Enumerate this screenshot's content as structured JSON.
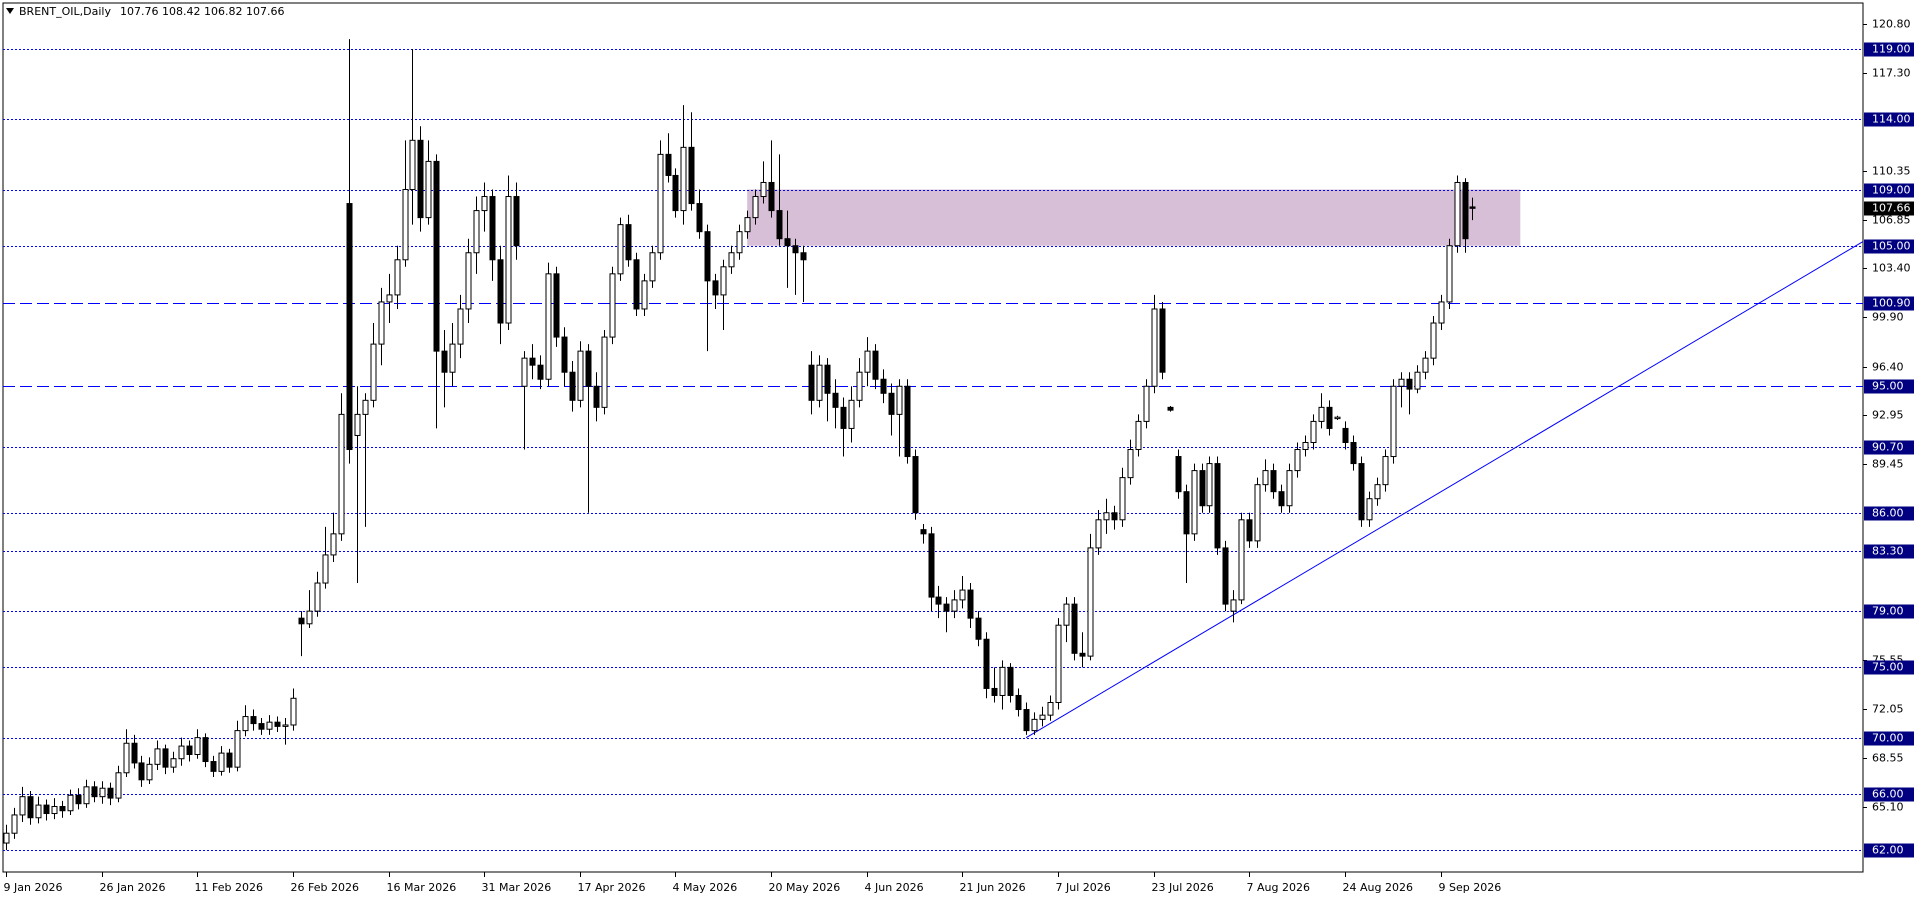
{
  "chart_data": {
    "type": "candlestick",
    "title": "BRENT_OIL,Daily",
    "subtitle": "107.76 108.42 106.82 107.66",
    "bull_color": "#ffffff",
    "bear_color": "#000000",
    "ylim": [
      60.44,
      122.27
    ],
    "yticks": [
      {
        "value": 120.8,
        "label": "120.80"
      },
      {
        "value": 117.3,
        "label": "117.30"
      },
      {
        "value": 110.35,
        "label": "110.35"
      },
      {
        "value": 106.85,
        "label": "106.85"
      },
      {
        "value": 103.4,
        "label": "103.40"
      },
      {
        "value": 99.9,
        "label": "99.90"
      },
      {
        "value": 96.4,
        "label": "96.40"
      },
      {
        "value": 92.95,
        "label": "92.95"
      },
      {
        "value": 89.45,
        "label": "89.45"
      },
      {
        "value": 75.55,
        "label": "75.55"
      },
      {
        "value": 72.05,
        "label": "72.05"
      },
      {
        "value": 68.55,
        "label": "68.55"
      },
      {
        "value": 65.1,
        "label": "65.10"
      }
    ],
    "levels": [
      {
        "value": 119,
        "label": "119.00",
        "style": "dotted"
      },
      {
        "value": 114,
        "label": "114.00",
        "style": "dotted"
      },
      {
        "value": 109,
        "label": "109.00",
        "style": "dotted"
      },
      {
        "value": 105,
        "label": "105.00",
        "style": "dotted"
      },
      {
        "value": 100.9,
        "label": "100.90",
        "style": "dashed"
      },
      {
        "value": 95,
        "label": "95.00",
        "style": "dashed"
      },
      {
        "value": 90.7,
        "label": "90.70",
        "style": "dotted"
      },
      {
        "value": 86,
        "label": "86.00",
        "style": "dotted"
      },
      {
        "value": 83.3,
        "label": "83.30",
        "style": "dotted"
      },
      {
        "value": 79,
        "label": "79.00",
        "style": "dotted"
      },
      {
        "value": 75,
        "label": "75.00",
        "style": "dotted"
      },
      {
        "value": 70,
        "label": "70.00",
        "style": "dotted"
      },
      {
        "value": 66,
        "label": "66.00",
        "style": "dotted"
      },
      {
        "value": 62,
        "label": "62.00",
        "style": "dotted"
      }
    ],
    "level_color": "#0000ff",
    "price_label": {
      "value": 107.66,
      "label": "107.66"
    },
    "zone": {
      "from_index": 93,
      "to_index": 190,
      "low": 105,
      "high": 109,
      "color": "#d8bfd8"
    },
    "trendline": {
      "start": [
        128,
        70
      ],
      "end": [
        233,
        105.3
      ],
      "color": "#0000ff"
    },
    "categories": [
      "9 Jan 2026",
      null,
      null,
      null,
      null,
      null,
      null,
      null,
      null,
      null,
      null,
      null,
      "26 Jan 2026",
      null,
      null,
      null,
      null,
      null,
      null,
      null,
      null,
      null,
      null,
      null,
      "11 Feb 2026",
      null,
      null,
      null,
      null,
      null,
      null,
      null,
      null,
      null,
      null,
      null,
      "26 Feb 2026",
      null,
      null,
      null,
      null,
      null,
      null,
      null,
      null,
      null,
      null,
      null,
      "16 Mar 2026",
      null,
      null,
      null,
      null,
      null,
      null,
      null,
      null,
      null,
      null,
      null,
      "31 Mar 2026",
      null,
      null,
      null,
      null,
      null,
      null,
      null,
      null,
      null,
      null,
      null,
      "17 Apr 2026",
      null,
      null,
      null,
      null,
      null,
      null,
      null,
      null,
      null,
      null,
      null,
      "4 May 2026",
      null,
      null,
      null,
      null,
      null,
      null,
      null,
      null,
      null,
      null,
      null,
      "20 May 2026",
      null,
      null,
      null,
      null,
      null,
      null,
      null,
      null,
      null,
      null,
      null,
      "4 Jun 2026",
      null,
      null,
      null,
      null,
      null,
      null,
      null,
      null,
      null,
      null,
      null,
      "21 Jun 2026",
      null,
      null,
      null,
      null,
      null,
      null,
      null,
      null,
      null,
      null,
      null,
      "7 Jul 2026",
      null,
      null,
      null,
      null,
      null,
      null,
      null,
      null,
      null,
      null,
      null,
      "23 Jul 2026",
      null,
      null,
      null,
      null,
      null,
      null,
      null,
      null,
      null,
      null,
      null,
      "7 Aug 2026",
      null,
      null,
      null,
      null,
      null,
      null,
      null,
      null,
      null,
      null,
      null,
      "24 Aug 2026",
      null,
      null,
      null,
      null,
      null,
      null,
      null,
      null,
      null,
      null,
      null,
      "9 Sep 2026",
      null,
      null,
      null,
      null
    ],
    "ohlc": [
      [
        62.5,
        63.8,
        62.0,
        63.2
      ],
      [
        63.2,
        65.0,
        62.8,
        64.5
      ],
      [
        64.5,
        66.5,
        64.0,
        65.8
      ],
      [
        65.8,
        66.2,
        63.8,
        64.3
      ],
      [
        64.3,
        65.8,
        63.9,
        65.2
      ],
      [
        65.2,
        65.6,
        64.1,
        64.6
      ],
      [
        64.6,
        65.7,
        64.2,
        65.1
      ],
      [
        65.1,
        65.5,
        64.3,
        64.8
      ],
      [
        64.8,
        66.3,
        64.5,
        65.9
      ],
      [
        65.9,
        66.4,
        64.9,
        65.3
      ],
      [
        65.3,
        67.0,
        65.0,
        66.5
      ],
      [
        66.5,
        66.9,
        65.4,
        65.8
      ],
      [
        65.8,
        66.9,
        65.3,
        66.4
      ],
      [
        66.4,
        66.8,
        65.2,
        65.7
      ],
      [
        65.7,
        68.0,
        65.4,
        67.5
      ],
      [
        67.5,
        70.6,
        67.2,
        69.6
      ],
      [
        69.6,
        70.2,
        67.8,
        68.2
      ],
      [
        68.2,
        68.7,
        66.5,
        67.0
      ],
      [
        67.0,
        68.6,
        66.7,
        68.1
      ],
      [
        68.1,
        69.8,
        67.7,
        69.2
      ],
      [
        69.2,
        69.5,
        67.4,
        67.9
      ],
      [
        67.9,
        69.0,
        67.5,
        68.5
      ],
      [
        68.5,
        70.0,
        68.0,
        69.4
      ],
      [
        69.4,
        69.8,
        68.3,
        68.8
      ],
      [
        68.8,
        70.6,
        68.5,
        70.0
      ],
      [
        70.0,
        70.3,
        67.9,
        68.3
      ],
      [
        68.3,
        68.7,
        67.2,
        67.6
      ],
      [
        67.6,
        69.4,
        67.3,
        68.9
      ],
      [
        68.9,
        69.2,
        67.5,
        67.9
      ],
      [
        67.9,
        71.2,
        67.6,
        70.5
      ],
      [
        70.5,
        72.3,
        70.1,
        71.5
      ],
      [
        71.5,
        72.0,
        70.5,
        71.0
      ],
      [
        71.0,
        71.4,
        70.2,
        70.6
      ],
      [
        70.6,
        71.6,
        70.2,
        71.1
      ],
      [
        71.1,
        71.5,
        70.4,
        70.8
      ],
      [
        70.8,
        71.4,
        69.5,
        70.9
      ],
      [
        70.9,
        73.5,
        70.5,
        72.8
      ],
      [
        78.5,
        79.0,
        75.8,
        78.1
      ],
      [
        78.1,
        80.5,
        77.8,
        79.0
      ],
      [
        79.0,
        81.8,
        78.6,
        81.0
      ],
      [
        81.0,
        85.0,
        80.6,
        83.0
      ],
      [
        83.0,
        86.0,
        82.5,
        84.5
      ],
      [
        84.5,
        94.5,
        84.0,
        93.0
      ],
      [
        108.0,
        119.7,
        89.5,
        90.5
      ],
      [
        91.5,
        95.0,
        81.0,
        93.0
      ],
      [
        93.0,
        94.5,
        85.0,
        94.0
      ],
      [
        94.0,
        99.5,
        93.5,
        98.0
      ],
      [
        98.0,
        102.0,
        96.5,
        101.0
      ],
      [
        101.0,
        103.0,
        99.5,
        101.5
      ],
      [
        101.5,
        105.0,
        100.5,
        104.0
      ],
      [
        104.0,
        112.5,
        103.5,
        109.0
      ],
      [
        109.0,
        119.0,
        106.5,
        112.5
      ],
      [
        112.5,
        113.5,
        106.0,
        107.0
      ],
      [
        107.0,
        112.5,
        106.5,
        111.0
      ],
      [
        111.0,
        111.5,
        92.0,
        97.5
      ],
      [
        97.5,
        99.0,
        93.5,
        96.0
      ],
      [
        96.0,
        99.5,
        95.0,
        98.0
      ],
      [
        98.0,
        101.5,
        97.0,
        100.5
      ],
      [
        100.5,
        105.5,
        99.5,
        104.5
      ],
      [
        104.5,
        108.5,
        103.0,
        107.5
      ],
      [
        107.5,
        109.5,
        106.0,
        108.5
      ],
      [
        108.5,
        109.0,
        102.5,
        104.0
      ],
      [
        104.0,
        105.0,
        98.0,
        99.5
      ],
      [
        99.5,
        110.0,
        99.0,
        108.5
      ],
      [
        108.5,
        109.5,
        104.0,
        105.0
      ],
      [
        95.0,
        97.5,
        90.5,
        97.0
      ],
      [
        97.0,
        98.0,
        95.5,
        96.5
      ],
      [
        96.5,
        97.2,
        94.8,
        95.5
      ],
      [
        95.5,
        103.8,
        95.0,
        103.0
      ],
      [
        103.0,
        103.5,
        97.8,
        98.5
      ],
      [
        98.5,
        99.2,
        95.0,
        96.0
      ],
      [
        96.0,
        96.8,
        93.2,
        94.0
      ],
      [
        94.0,
        98.2,
        93.5,
        97.5
      ],
      [
        97.5,
        98.0,
        86.0,
        95.0
      ],
      [
        95.0,
        96.0,
        92.5,
        93.5
      ],
      [
        93.5,
        99.0,
        93.0,
        98.5
      ],
      [
        98.5,
        103.5,
        98.0,
        103.0
      ],
      [
        103.0,
        107.0,
        102.5,
        106.5
      ],
      [
        106.5,
        107.2,
        103.5,
        104.0
      ],
      [
        104.0,
        104.5,
        100.0,
        100.5
      ],
      [
        100.5,
        103.0,
        100.0,
        102.5
      ],
      [
        102.5,
        105.0,
        102.0,
        104.5
      ],
      [
        104.5,
        112.5,
        104.0,
        111.5
      ],
      [
        111.5,
        113.0,
        109.5,
        110.0
      ],
      [
        110.0,
        110.5,
        107.0,
        107.5
      ],
      [
        107.5,
        115.0,
        106.5,
        112.0
      ],
      [
        112.0,
        114.5,
        107.5,
        108.0
      ],
      [
        108.0,
        109.0,
        105.5,
        106.0
      ],
      [
        106.0,
        106.5,
        97.5,
        102.5
      ],
      [
        102.5,
        103.0,
        100.5,
        101.5
      ],
      [
        101.5,
        104.0,
        99.0,
        103.5
      ],
      [
        103.5,
        105.0,
        103.0,
        104.5
      ],
      [
        104.5,
        106.5,
        104.0,
        106.0
      ],
      [
        106.0,
        107.5,
        105.5,
        107.0
      ],
      [
        107.0,
        109.0,
        106.5,
        108.5
      ],
      [
        108.5,
        111.0,
        108.0,
        109.5
      ],
      [
        109.5,
        112.5,
        107.0,
        107.5
      ],
      [
        107.5,
        111.5,
        105.0,
        105.5
      ],
      [
        105.5,
        107.5,
        102.0,
        105.0
      ],
      [
        105.0,
        105.5,
        101.5,
        104.5
      ],
      [
        104.5,
        105.0,
        101.0,
        104.0
      ],
      [
        96.5,
        97.5,
        93.0,
        94.0
      ],
      [
        94.0,
        97.2,
        93.5,
        96.5
      ],
      [
        96.5,
        97.0,
        92.5,
        94.5
      ],
      [
        94.5,
        95.5,
        92.0,
        93.5
      ],
      [
        93.5,
        94.2,
        90.0,
        92.0
      ],
      [
        92.0,
        95.0,
        91.0,
        94.0
      ],
      [
        94.0,
        97.0,
        93.5,
        96.0
      ],
      [
        96.0,
        98.5,
        95.0,
        97.5
      ],
      [
        97.5,
        98.0,
        94.8,
        95.5
      ],
      [
        95.5,
        96.2,
        93.8,
        94.5
      ],
      [
        94.5,
        95.2,
        91.5,
        93.0
      ],
      [
        93.0,
        95.5,
        90.0,
        95.0
      ],
      [
        95.0,
        95.5,
        89.5,
        90.0
      ],
      [
        90.0,
        90.5,
        85.5,
        86.0
      ],
      [
        84.8,
        85.2,
        83.8,
        84.5
      ],
      [
        84.5,
        85.0,
        79.0,
        80.0
      ],
      [
        80.0,
        80.8,
        78.5,
        79.5
      ],
      [
        79.5,
        80.0,
        77.5,
        79.0
      ],
      [
        79.0,
        80.5,
        78.5,
        79.8
      ],
      [
        79.8,
        81.5,
        79.2,
        80.5
      ],
      [
        80.5,
        81.0,
        77.8,
        78.5
      ],
      [
        78.5,
        79.0,
        76.5,
        77.0
      ],
      [
        77.0,
        77.5,
        72.8,
        73.5
      ],
      [
        73.5,
        75.0,
        72.5,
        73.0
      ],
      [
        73.0,
        75.5,
        72.0,
        75.0
      ],
      [
        75.0,
        75.3,
        72.5,
        73.0
      ],
      [
        73.0,
        73.5,
        71.5,
        72.0
      ],
      [
        72.0,
        72.5,
        70.2,
        70.5
      ],
      [
        70.5,
        71.8,
        70.2,
        71.3
      ],
      [
        71.3,
        72.2,
        70.8,
        71.6
      ],
      [
        71.6,
        73.0,
        71.2,
        72.5
      ],
      [
        72.5,
        78.5,
        72.0,
        78.0
      ],
      [
        78.0,
        80.0,
        76.8,
        79.5
      ],
      [
        79.5,
        80.0,
        75.5,
        76.0
      ],
      [
        76.0,
        77.5,
        75.0,
        75.8
      ],
      [
        75.8,
        84.5,
        75.5,
        83.5
      ],
      [
        83.5,
        86.2,
        83.0,
        85.5
      ],
      [
        85.5,
        87.0,
        84.5,
        86.0
      ],
      [
        86.0,
        86.5,
        84.8,
        85.5
      ],
      [
        85.5,
        89.2,
        85.0,
        88.5
      ],
      [
        88.5,
        91.2,
        88.0,
        90.5
      ],
      [
        90.5,
        93.0,
        90.0,
        92.5
      ],
      [
        92.5,
        95.5,
        92.0,
        95.0
      ],
      [
        95.0,
        101.5,
        94.5,
        100.5
      ],
      [
        100.5,
        101.0,
        95.5,
        96.0
      ],
      [
        93.5,
        93.6,
        93.2,
        93.3
      ],
      [
        90.0,
        90.5,
        87.0,
        87.5
      ],
      [
        87.5,
        88.0,
        81.0,
        84.5
      ],
      [
        84.5,
        89.5,
        84.0,
        89.0
      ],
      [
        89.0,
        89.5,
        86.0,
        86.5
      ],
      [
        86.5,
        90.0,
        86.0,
        89.5
      ],
      [
        89.5,
        90.0,
        83.0,
        83.5
      ],
      [
        83.5,
        84.0,
        79.0,
        79.5
      ],
      [
        79.0,
        80.5,
        78.2,
        79.8
      ],
      [
        79.8,
        86.0,
        79.5,
        85.5
      ],
      [
        85.5,
        86.0,
        83.5,
        84.0
      ],
      [
        84.0,
        88.5,
        83.5,
        88.0
      ],
      [
        88.0,
        89.8,
        87.5,
        89.0
      ],
      [
        89.0,
        89.5,
        87.0,
        87.5
      ],
      [
        87.5,
        88.0,
        86.0,
        86.5
      ],
      [
        86.5,
        89.5,
        86.0,
        89.0
      ],
      [
        89.0,
        91.0,
        88.5,
        90.5
      ],
      [
        90.5,
        91.5,
        90.0,
        91.0
      ],
      [
        91.0,
        93.0,
        90.5,
        92.5
      ],
      [
        92.5,
        94.5,
        92.0,
        93.5
      ],
      [
        93.5,
        94.0,
        91.5,
        92.0
      ],
      [
        92.7,
        92.9,
        92.6,
        92.8
      ],
      [
        92.0,
        92.5,
        90.5,
        91.0
      ],
      [
        91.0,
        91.5,
        89.0,
        89.5
      ],
      [
        89.5,
        90.0,
        85.0,
        85.5
      ],
      [
        85.5,
        87.5,
        85.0,
        87.0
      ],
      [
        87.0,
        88.5,
        86.5,
        88.0
      ],
      [
        88.0,
        90.5,
        87.5,
        90.0
      ],
      [
        90.0,
        95.5,
        89.5,
        95.0
      ],
      [
        95.0,
        96.0,
        93.5,
        95.5
      ],
      [
        95.5,
        96.0,
        93.0,
        94.8
      ],
      [
        94.8,
        96.5,
        94.5,
        96.0
      ],
      [
        96.0,
        97.5,
        95.5,
        97.0
      ],
      [
        97.0,
        100.0,
        96.5,
        99.5
      ],
      [
        99.5,
        101.5,
        99.0,
        101.0
      ],
      [
        101.0,
        105.5,
        100.5,
        105.0
      ],
      [
        105.0,
        110.0,
        104.5,
        109.5
      ],
      [
        109.5,
        109.8,
        104.5,
        105.5
      ],
      [
        107.76,
        108.42,
        106.82,
        107.66
      ]
    ]
  }
}
